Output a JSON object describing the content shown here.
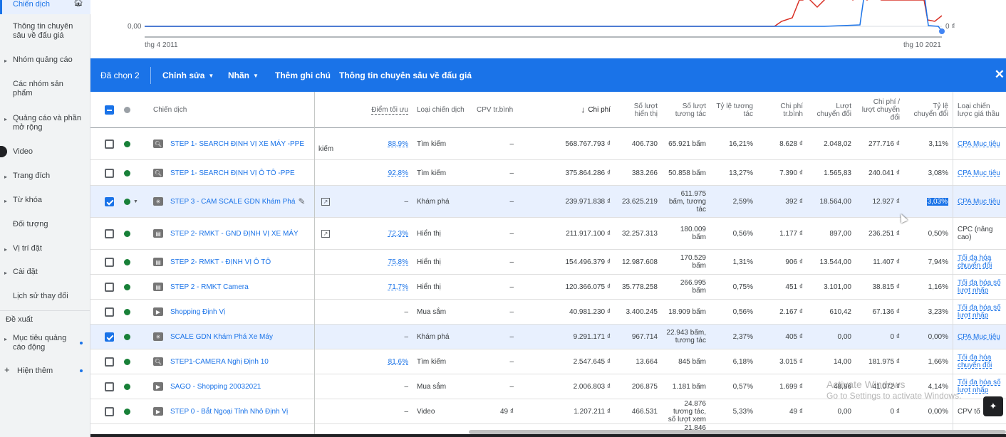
{
  "sidebar": {
    "items": [
      {
        "label": "Chiến dịch",
        "active": true
      },
      {
        "label": "Thông tin chuyên sâu về đấu giá"
      },
      {
        "label": "Nhóm quảng cáo",
        "arrow": true
      },
      {
        "label": "Các nhóm sản phẩm"
      },
      {
        "label": "Quảng cáo và phần mở rộng",
        "arrow": true
      },
      {
        "label": "Video",
        "arrow": true
      },
      {
        "label": "Trang đích",
        "arrow": true
      },
      {
        "label": "Từ khóa",
        "arrow": true
      },
      {
        "label": "Đối tượng"
      },
      {
        "label": "Vị trí đặt",
        "arrow": true
      },
      {
        "label": "Cài đặt",
        "arrow": true
      },
      {
        "label": "Lịch sử thay đổi"
      }
    ],
    "section_label": "Đề xuất",
    "goal_label": "Mục tiêu quảng cáo động",
    "show_more_label": "Hiện thêm"
  },
  "chart": {
    "y_zero_left": "0,00",
    "y_zero_right": "0 ₫",
    "x_start": "thg 4 2011",
    "x_end": "thg 10 2021",
    "colors": {
      "red": "#d93025",
      "blue": "#1a73e8"
    }
  },
  "actionbar": {
    "selected": "Đã chọn 2",
    "edit": "Chỉnh sửa",
    "labels": "Nhãn",
    "add_note": "Thêm ghi chú",
    "auction_insights": "Thông tin chuyên sâu về đấu giá"
  },
  "table": {
    "headers": {
      "campaign": "Chiến dịch",
      "optimization": "Điểm tối ưu",
      "type": "Loại chiến dịch",
      "avg_cpv": "CPV tr.bình",
      "cost": "Chi phí",
      "impressions": "Số lượt hiển thị",
      "interactions": "Số lượt tương tác",
      "interaction_rate": "Tỷ lệ tương tác",
      "avg_cost": "Chi phí tr.bình",
      "conversions": "Lượt chuyển đổi",
      "cost_per_conv": "Chi phí / lượt chuyển đổi",
      "conv_rate": "Tỷ lệ chuyển đổi",
      "bid_strategy": "Loại chiến lược giá thầu"
    },
    "rows": [
      {
        "checked": false,
        "icon": "search",
        "name": "STEP 1- SEARCH ĐỊNH VỊ XE MÁY -PPE",
        "extra": "kiếm",
        "opt": "88,9%",
        "type": "Tìm kiếm",
        "cpv": "–",
        "cost": "568.767.793 ₫",
        "impr": "406.730",
        "inter": "65.921 bấm",
        "irate": "16,21%",
        "avg": "8.628 ₫",
        "conv": "2.048,02",
        "cpc": "277.716 ₫",
        "crate": "3,11%",
        "bid": "CPA Mục tiêu"
      },
      {
        "checked": false,
        "icon": "search",
        "name": "STEP 1- SEARCH ĐỊNH VỊ Ô TÔ -PPE",
        "extra": "",
        "opt": "92,8%",
        "type": "Tìm kiếm",
        "cpv": "–",
        "cost": "375.864.286 ₫",
        "impr": "383.266",
        "inter": "50.858 bấm",
        "irate": "13,27%",
        "avg": "7.390 ₫",
        "conv": "1.565,83",
        "cpc": "240.041 ₫",
        "crate": "3,08%",
        "bid": "CPA Mục tiêu"
      },
      {
        "checked": true,
        "icon": "discovery",
        "name": "STEP 3 - CAM SCALE GDN Khám Phá",
        "extra": "",
        "opt": "–",
        "type": "Khám phá",
        "cpv": "–",
        "cost": "239.971.838 ₫",
        "impr": "23.625.219",
        "inter": "611.975 bấm, tương tác",
        "irate": "2,59%",
        "avg": "392 ₫",
        "conv": "18.564,00",
        "cpc": "12.927 ₫",
        "crate": "3,03%",
        "bid": "CPA Mục tiêu",
        "highlight_rate": true
      },
      {
        "checked": false,
        "icon": "display",
        "name": "STEP 2- RMKT - GND ĐỊNH VỊ XE MÁY",
        "extra": "",
        "opt": "72,3%",
        "type": "Hiển thị",
        "cpv": "–",
        "cost": "211.917.100 ₫",
        "impr": "32.257.313",
        "inter": "180.009 bấm",
        "irate": "0,56%",
        "avg": "1.177 ₫",
        "conv": "897,00",
        "cpc": "236.251 ₫",
        "crate": "0,50%",
        "bid": "CPC (nâng cao)",
        "bid_plain": true
      },
      {
        "checked": false,
        "icon": "display",
        "name": "STEP 2- RMKT - ĐỊNH VỊ Ô TÔ",
        "extra": "",
        "opt": "75,8%",
        "type": "Hiển thị",
        "cpv": "–",
        "cost": "154.496.379 ₫",
        "impr": "12.987.608",
        "inter": "170.529 bấm",
        "irate": "1,31%",
        "avg": "906 ₫",
        "conv": "13.544,00",
        "cpc": "11.407 ₫",
        "crate": "7,94%",
        "bid": "Tối đa hóa chuyển đổi"
      },
      {
        "checked": false,
        "icon": "display",
        "name": "STEP 2 - RMKT Camera",
        "extra": "",
        "opt": "71,7%",
        "type": "Hiển thị",
        "cpv": "–",
        "cost": "120.366.075 ₫",
        "impr": "35.778.258",
        "inter": "266.995 bấm",
        "irate": "0,75%",
        "avg": "451 ₫",
        "conv": "3.101,00",
        "cpc": "38.815 ₫",
        "crate": "1,16%",
        "bid": "Tối đa hóa số lượt nhấp"
      },
      {
        "checked": false,
        "icon": "shopping",
        "name": "Shopping Định Vị",
        "extra": "",
        "opt": "–",
        "type": "Mua sắm",
        "cpv": "–",
        "cost": "40.981.230 ₫",
        "impr": "3.400.245",
        "inter": "18.909 bấm",
        "irate": "0,56%",
        "avg": "2.167 ₫",
        "conv": "610,42",
        "cpc": "67.136 ₫",
        "crate": "3,23%",
        "bid": "Tối đa hóa số lượt nhấp"
      },
      {
        "checked": true,
        "icon": "discovery",
        "name": "SCALE GDN Khám Phá Xe Máy",
        "extra": "",
        "opt": "–",
        "type": "Khám phá",
        "cpv": "–",
        "cost": "9.291.171 ₫",
        "impr": "967.714",
        "inter": "22.943 bấm, tương tác",
        "irate": "2,37%",
        "avg": "405 ₫",
        "conv": "0,00",
        "cpc": "0 ₫",
        "crate": "0,00%",
        "bid": "CPA Mục tiêu"
      },
      {
        "checked": false,
        "icon": "search",
        "name": "STEP1-CAMERA Nghị Định 10",
        "extra": "",
        "opt": "81,6%",
        "type": "Tìm kiếm",
        "cpv": "–",
        "cost": "2.547.645 ₫",
        "impr": "13.664",
        "inter": "845 bấm",
        "irate": "6,18%",
        "avg": "3.015 ₫",
        "conv": "14,00",
        "cpc": "181.975 ₫",
        "crate": "1,66%",
        "bid": "Tối đa hóa chuyển đổi"
      },
      {
        "checked": false,
        "icon": "shopping",
        "name": "SAGO - Shopping 20032021",
        "extra": "",
        "opt": "–",
        "type": "Mua sắm",
        "cpv": "–",
        "cost": "2.006.803 ₫",
        "impr": "206.875",
        "inter": "1.181 bấm",
        "irate": "0,57%",
        "avg": "1.699 ₫",
        "conv": "48,86",
        "cpc": "41.072 ₫",
        "crate": "4,14%",
        "bid": "Tối đa hóa số lượt nhấp"
      },
      {
        "checked": false,
        "icon": "video",
        "name": "STEP 0 - Bắt Ngoại Tỉnh Nhỏ Định Vị",
        "extra": "",
        "opt": "–",
        "type": "Video",
        "cpv": "49 ₫",
        "cost": "1.207.211 ₫",
        "impr": "466.531",
        "inter": "24.876 tương tác, số lượt xem",
        "irate": "5,33%",
        "avg": "49 ₫",
        "conv": "0,00",
        "cpc": "0 ₫",
        "crate": "0,00%",
        "bid": "CPV tố",
        "bid_plain": true
      }
    ],
    "partial_row_text": "21.846"
  },
  "watermark": {
    "title": "Activate Windows",
    "sub": "Go to Settings to activate Windows."
  }
}
